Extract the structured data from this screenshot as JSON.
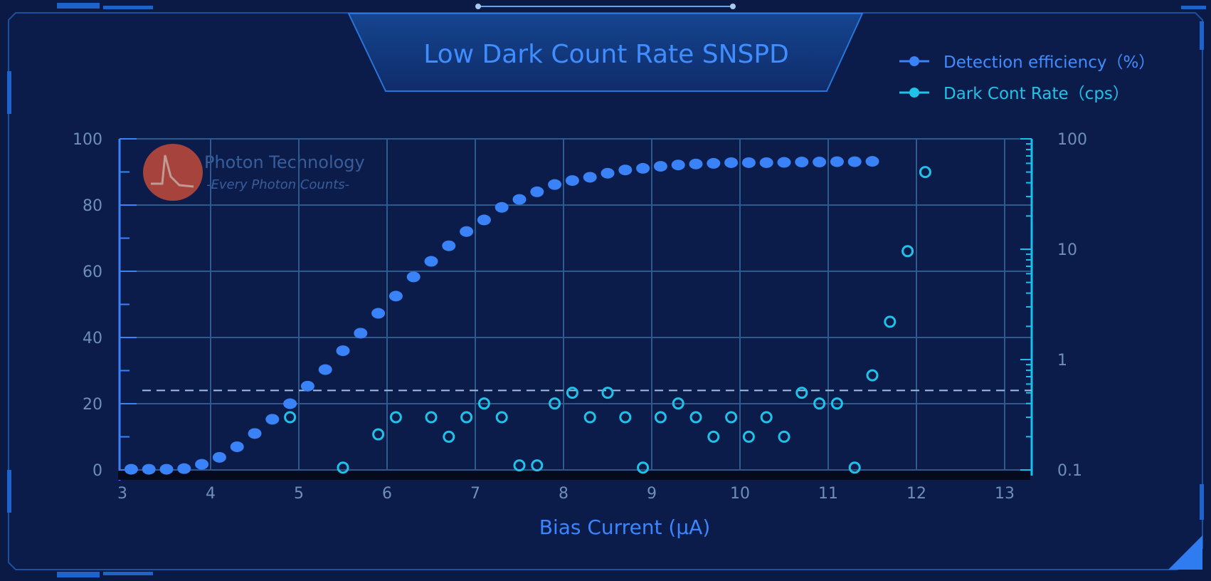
{
  "colors": {
    "background": "#0c1c4a",
    "panel_border": "#1d63c9",
    "grid": "#2a5a8e",
    "title": "#3f8dff",
    "axis_text": "#6e8fb8",
    "axis_label": "#3a86ff",
    "efficiency_series": "#3a82f7",
    "dark_count_series": "#1fc3ea",
    "right_axis": "#19c0ea",
    "reference_line": "#9fc0e0",
    "watermark_logo": "#c04a3a"
  },
  "watermark": {
    "name": "Photon Technology",
    "slogan": "-Every Photon Counts-"
  },
  "chart_data": {
    "type": "scatter",
    "title": "Low Dark Count Rate SNSPD",
    "xlabel": "Bias Current (μA)",
    "ylabel": "",
    "y2label": "",
    "xlim": [
      3,
      13.5
    ],
    "ylim": [
      0,
      100
    ],
    "y2lim": [
      0.1,
      100
    ],
    "y2scale": "log",
    "x_ticks": [
      3,
      4,
      5,
      6,
      7,
      8,
      9,
      10,
      11,
      12,
      13
    ],
    "x_tick_labels": [
      "3",
      "4",
      "5",
      "6",
      "7",
      "8",
      "9",
      "10",
      "11",
      "12",
      "13"
    ],
    "y_ticks": [
      0,
      20,
      40,
      60,
      80,
      100
    ],
    "y_tick_labels": [
      "0",
      "20",
      "40",
      "60",
      "80",
      "100"
    ],
    "y2_ticks": [
      0.1,
      1,
      10,
      100
    ],
    "y2_tick_labels": [
      "0.1",
      "1",
      "10",
      "100"
    ],
    "grid": true,
    "legend_position": "top-right",
    "reference_line": {
      "axis": "y",
      "value": 24
    },
    "series": [
      {
        "name": "Detection  efficiency（%）",
        "axis": "left",
        "marker": "filled-circle",
        "x": [
          3.1,
          3.3,
          3.5,
          3.7,
          3.9,
          4.1,
          4.3,
          4.5,
          4.7,
          4.9,
          5.1,
          5.3,
          5.5,
          5.7,
          5.9,
          6.1,
          6.3,
          6.5,
          6.7,
          6.9,
          7.1,
          7.3,
          7.5,
          7.7,
          7.9,
          8.1,
          8.3,
          8.5,
          8.7,
          8.9,
          9.1,
          9.3,
          9.5,
          9.7,
          9.9,
          10.1,
          10.3,
          10.5,
          10.7,
          10.9,
          11.1,
          11.3,
          11.5
        ],
        "y": [
          0.2,
          0.2,
          0.2,
          0.4,
          1.7,
          3.8,
          7,
          11,
          15.3,
          20,
          25.3,
          30.3,
          36,
          41.3,
          47.3,
          52.5,
          58.3,
          63,
          67.7,
          72,
          75.5,
          79.3,
          81.7,
          84,
          86.2,
          87.4,
          88.4,
          89.6,
          90.6,
          91.1,
          91.7,
          92.1,
          92.4,
          92.6,
          92.8,
          92.8,
          92.8,
          92.9,
          93,
          93,
          93.1,
          93.1,
          93.2
        ]
      },
      {
        "name": "Dark Cont Rate（cps）",
        "axis": "right",
        "marker": "open-circle",
        "x": [
          4.9,
          5.5,
          5.9,
          6.1,
          6.5,
          6.7,
          6.9,
          7.1,
          7.3,
          7.5,
          7.7,
          7.9,
          8.1,
          8.3,
          8.5,
          8.7,
          8.9,
          9.1,
          9.3,
          9.5,
          9.7,
          9.9,
          10.1,
          10.3,
          10.5,
          10.7,
          10.9,
          11.1,
          11.3,
          11.5,
          11.7,
          11.9,
          12.1
        ],
        "y": [
          0.3,
          0.105,
          0.21,
          0.3,
          0.3,
          0.2,
          0.3,
          0.4,
          0.3,
          0.11,
          0.11,
          0.4,
          0.5,
          0.3,
          0.5,
          0.3,
          0.105,
          0.3,
          0.4,
          0.3,
          0.2,
          0.3,
          0.2,
          0.3,
          0.2,
          0.5,
          0.4,
          0.4,
          0.105,
          0.72,
          2.2,
          9.6,
          50
        ]
      }
    ]
  }
}
